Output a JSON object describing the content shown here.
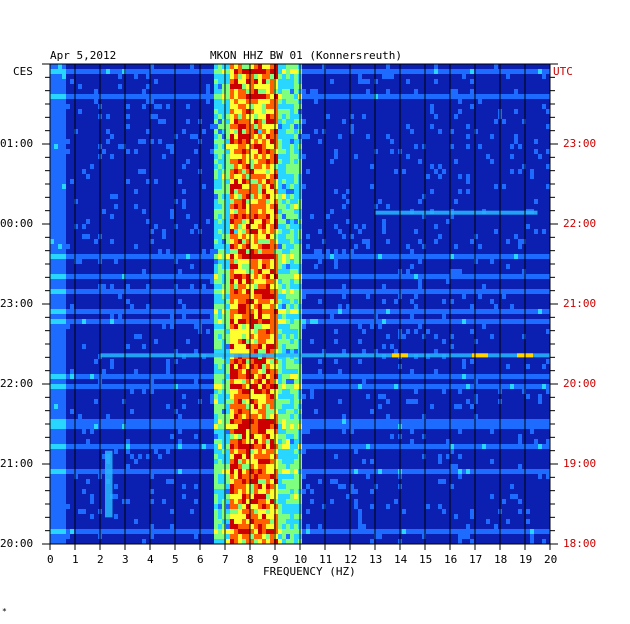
{
  "chart_data": {
    "type": "heatmap",
    "header": {
      "date": "Apr 5,2012",
      "station": "MKON HHZ BW 01 (Konnersreuth)"
    },
    "xlabel": "FREQUENCY (HZ)",
    "xlim": [
      0,
      20
    ],
    "x_ticks": [
      "0",
      "1",
      "2",
      "3",
      "4",
      "5",
      "6",
      "7",
      "8",
      "9",
      "10",
      "11",
      "12",
      "13",
      "14",
      "15",
      "16",
      "17",
      "18",
      "19",
      "20"
    ],
    "left_axis": {
      "label": "CES",
      "ticks": [
        "01:00",
        "00:00",
        "23:00",
        "22:00",
        "21:00",
        "20:00"
      ]
    },
    "right_axis": {
      "label": "UTC",
      "ticks": [
        "23:00",
        "22:00",
        "21:00",
        "20:00",
        "19:00",
        "18:00"
      ]
    },
    "time_span_hours": 6,
    "dominant_band_hz": [
      6.5,
      10
    ],
    "peak_band_hz": [
      7.2,
      9.2
    ],
    "events": [
      {
        "time_utc": "20:23",
        "freq_range_hz": [
          2,
          20
        ],
        "strong_hz": [
          14,
          17.2,
          19
        ]
      },
      {
        "time_utc": "22:10",
        "freq_range_hz": [
          13,
          19.5
        ]
      },
      {
        "time_utc": "18:20-19:10",
        "freq_range_hz": [
          2.2,
          2.5
        ]
      }
    ],
    "colormap": [
      "#0b1fb0",
      "#1e6cff",
      "#28d6ff",
      "#7fff7f",
      "#ffff30",
      "#ff6000",
      "#cc0000"
    ]
  },
  "footer_mark": "*"
}
